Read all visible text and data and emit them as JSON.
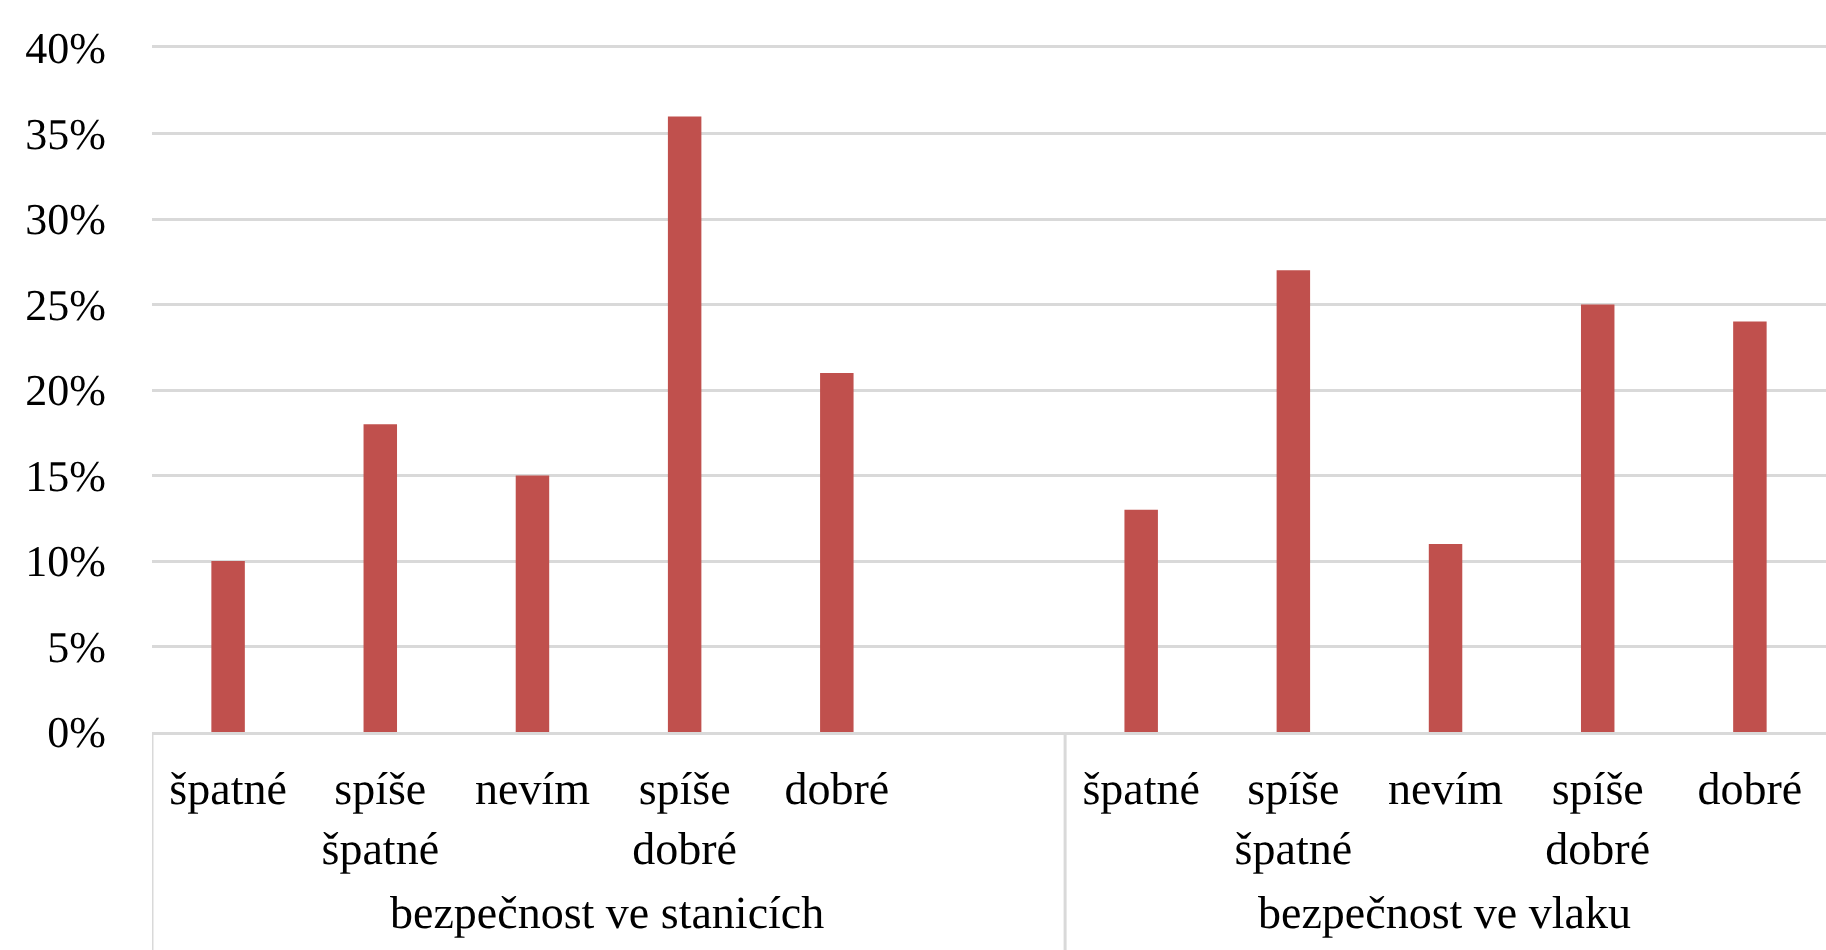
{
  "chart_data": {
    "type": "bar",
    "categories": [
      "špatné",
      "spíše špatné",
      "nevím",
      "spíše dobré",
      "dobré",
      null,
      "špatné",
      "spíše špatné",
      "nevím",
      "spíše dobré",
      "dobré"
    ],
    "values": [
      10,
      18,
      15,
      36,
      21,
      null,
      13,
      27,
      11,
      25,
      24
    ],
    "color": "#c0504d",
    "ylim": [
      0,
      40
    ],
    "yticks": [
      {
        "value": 0,
        "label": "0%"
      },
      {
        "value": 5,
        "label": "5%"
      },
      {
        "value": 10,
        "label": "10%"
      },
      {
        "value": 15,
        "label": "15%"
      },
      {
        "value": 20,
        "label": "20%"
      },
      {
        "value": 25,
        "label": "25%"
      },
      {
        "value": 30,
        "label": "30%"
      },
      {
        "value": 35,
        "label": "35%"
      },
      {
        "value": 40,
        "label": "40%"
      }
    ],
    "grid": "y",
    "annotations": [
      "bezpečnost ve stanicích",
      "bezpečnost ve vlaku"
    ]
  }
}
